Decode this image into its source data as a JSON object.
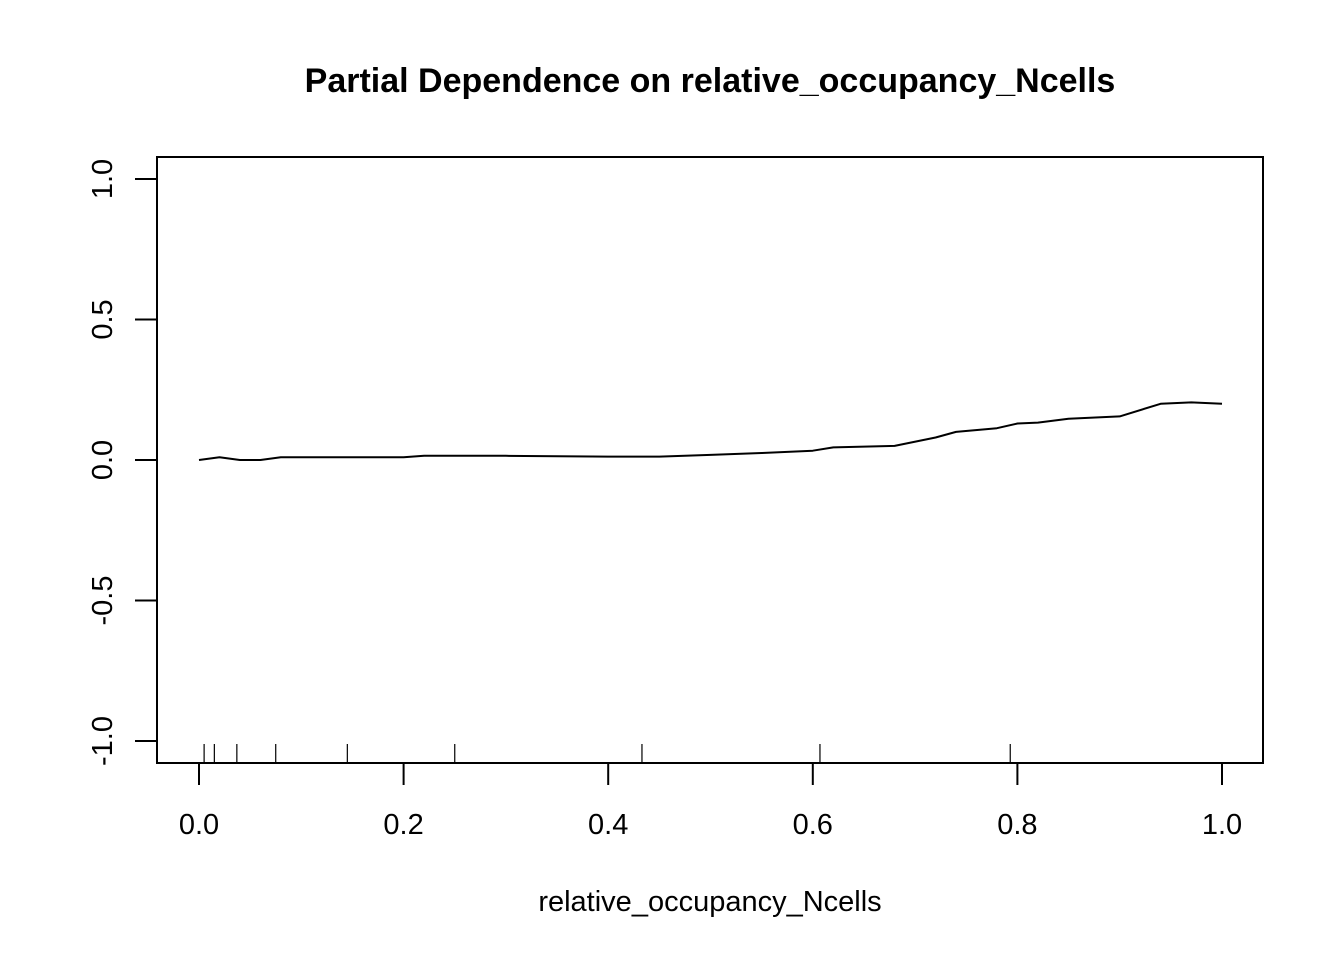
{
  "chart_data": {
    "type": "line",
    "title": "Partial Dependence on relative_occupancy_Ncells",
    "xlabel": "relative_occupancy_Ncells",
    "ylabel": "",
    "xlim": [
      0.0,
      1.0
    ],
    "ylim": [
      -1.0,
      1.0
    ],
    "x_ticks": [
      0.0,
      0.2,
      0.4,
      0.6,
      0.8,
      1.0
    ],
    "x_tick_labels": [
      "0.0",
      "0.2",
      "0.4",
      "0.6",
      "0.8",
      "1.0"
    ],
    "y_ticks": [
      -1.0,
      -0.5,
      0.0,
      0.5,
      1.0
    ],
    "y_tick_labels": [
      "-1.0",
      "-0.5",
      "0.0",
      "0.5",
      "1.0"
    ],
    "grid": false,
    "legend": "none",
    "line_color": "#000000",
    "series": [
      {
        "x": [
          0.0,
          0.02,
          0.04,
          0.06,
          0.08,
          0.1,
          0.15,
          0.2,
          0.22,
          0.3,
          0.4,
          0.45,
          0.5,
          0.55,
          0.6,
          0.62,
          0.68,
          0.72,
          0.74,
          0.78,
          0.8,
          0.82,
          0.85,
          0.9,
          0.94,
          0.97,
          1.0
        ],
        "y": [
          0.0,
          0.01,
          0.0,
          0.0,
          0.01,
          0.01,
          0.01,
          0.01,
          0.015,
          0.015,
          0.012,
          0.012,
          0.018,
          0.025,
          0.033,
          0.045,
          0.05,
          0.08,
          0.1,
          0.113,
          0.13,
          0.133,
          0.147,
          0.155,
          0.2,
          0.205,
          0.2
        ]
      }
    ],
    "rug_x": [
      0.005,
      0.015,
      0.037,
      0.075,
      0.145,
      0.25,
      0.433,
      0.607,
      0.793
    ]
  }
}
